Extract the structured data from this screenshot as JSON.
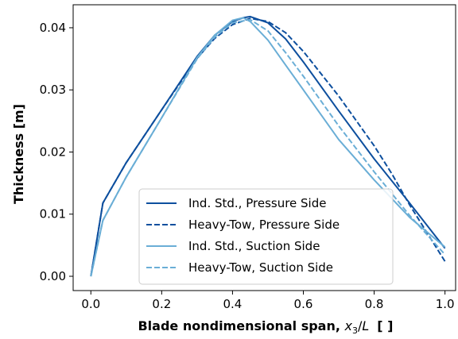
{
  "chart_data": {
    "type": "line",
    "xlabel_main": "Blade nondimensional span, ",
    "xlabel_math": "x",
    "xlabel_sub": "3",
    "xlabel_slash": "/",
    "xlabel_L": "L",
    "xlabel_units": "[ ]",
    "ylabel": "Thickness [m]",
    "xlim": [
      -0.05,
      1.03
    ],
    "ylim": [
      -0.0023,
      0.0437
    ],
    "xticks": [
      0.0,
      0.2,
      0.4,
      0.6,
      0.8,
      1.0
    ],
    "xtick_labels": [
      "0.0",
      "0.2",
      "0.4",
      "0.6",
      "0.8",
      "1.0"
    ],
    "yticks": [
      0.0,
      0.01,
      0.02,
      0.03,
      0.04
    ],
    "ytick_labels": [
      "0.00",
      "0.01",
      "0.02",
      "0.03",
      "0.04"
    ],
    "grid": false,
    "legend_position": "lower-center",
    "series": [
      {
        "name": "Ind. Std., Pressure Side",
        "color": "#0d4f9e",
        "dash": "solid",
        "x": [
          0.0,
          0.034,
          0.1,
          0.2,
          0.3,
          0.35,
          0.4,
          0.43,
          0.45,
          0.5,
          0.55,
          0.6,
          0.7,
          0.8,
          0.9,
          1.0
        ],
        "y": [
          0.0,
          0.0118,
          0.0183,
          0.0268,
          0.0354,
          0.0388,
          0.041,
          0.0416,
          0.0418,
          0.0408,
          0.0382,
          0.0345,
          0.0266,
          0.0189,
          0.0118,
          0.0045
        ]
      },
      {
        "name": "Heavy-Tow, Pressure Side",
        "color": "#0d4f9e",
        "dash": "dashed",
        "x": [
          0.0,
          0.034,
          0.1,
          0.2,
          0.3,
          0.35,
          0.4,
          0.45,
          0.5,
          0.55,
          0.6,
          0.7,
          0.8,
          0.85,
          0.9,
          1.0
        ],
        "y": [
          0.0,
          0.0118,
          0.0183,
          0.0268,
          0.0351,
          0.0383,
          0.0405,
          0.0415,
          0.041,
          0.0392,
          0.0362,
          0.029,
          0.021,
          0.0165,
          0.0115,
          0.0024
        ]
      },
      {
        "name": "Ind. Std., Suction Side",
        "color": "#6aaed6",
        "dash": "solid",
        "x": [
          0.0,
          0.034,
          0.1,
          0.2,
          0.3,
          0.35,
          0.4,
          0.43,
          0.45,
          0.5,
          0.55,
          0.6,
          0.7,
          0.8,
          0.9,
          1.0
        ],
        "y": [
          0.0,
          0.009,
          0.016,
          0.0255,
          0.0352,
          0.0388,
          0.0412,
          0.0416,
          0.041,
          0.038,
          0.034,
          0.03,
          0.022,
          0.0155,
          0.0095,
          0.0047
        ]
      },
      {
        "name": "Heavy-Tow, Suction Side",
        "color": "#6aaed6",
        "dash": "dashed",
        "x": [
          0.0,
          0.034,
          0.1,
          0.2,
          0.3,
          0.35,
          0.4,
          0.45,
          0.5,
          0.55,
          0.6,
          0.7,
          0.8,
          0.9,
          1.0
        ],
        "y": [
          0.0,
          0.009,
          0.016,
          0.0255,
          0.035,
          0.0385,
          0.0408,
          0.0413,
          0.0395,
          0.036,
          0.0322,
          0.0242,
          0.0168,
          0.0098,
          0.0035
        ]
      }
    ]
  }
}
